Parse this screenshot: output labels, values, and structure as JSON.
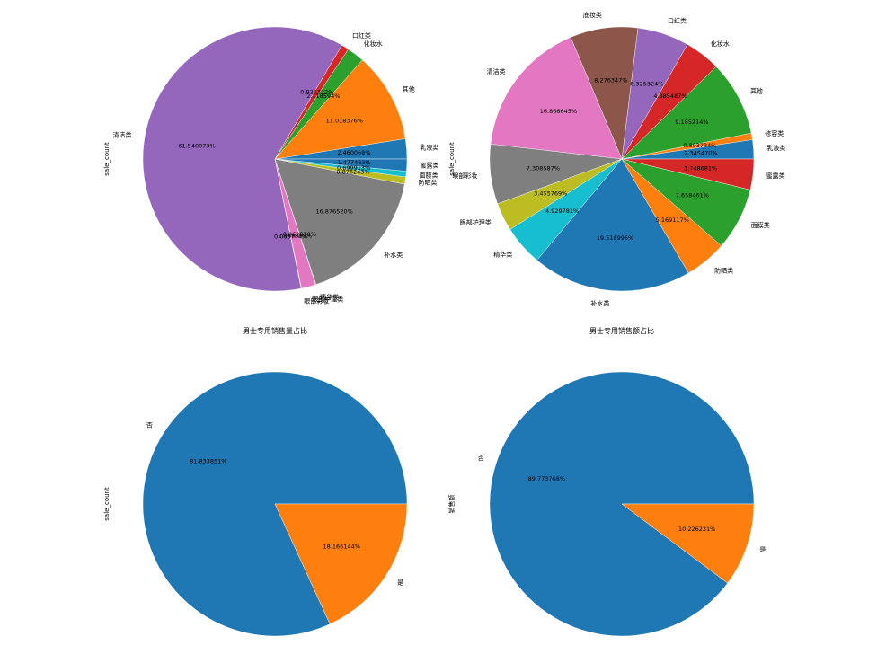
{
  "colors": {
    "palette": [
      "#1f77b4",
      "#ff7f0e",
      "#2ca02c",
      "#d62728",
      "#9467bd",
      "#8c564b",
      "#e377c2",
      "#7f7f7f",
      "#bcbd22",
      "#17becf"
    ],
    "wedge_edge": "#ffffff"
  },
  "chart_data": [
    {
      "type": "pie",
      "title": "",
      "ylabel": "sale_count",
      "start_angle_deg": 0,
      "counterclock": true,
      "slices": [
        {
          "label": "乳液类",
          "pct_text": "2.460068%",
          "value": 2.460068,
          "color": "#1f77b4"
        },
        {
          "label": "其他",
          "pct_text": "11.018376%",
          "value": 11.018376,
          "color": "#ff7f0e"
        },
        {
          "label": "化妆水",
          "pct_text": "2.118594%",
          "value": 2.118594,
          "color": "#2ca02c"
        },
        {
          "label": "口红类",
          "pct_text": "0.925322%",
          "value": 0.925322,
          "color": "#d62728"
        },
        {
          "label": "清洁类",
          "pct_text": "61.540073%",
          "value": 61.540073,
          "color": "#9467bd"
        },
        {
          "label": "眼部彩妆",
          "pct_text": "0.063744%",
          "value": 0.063744,
          "color": "#8c564b"
        },
        {
          "label": "眼部护理类",
          "pct_text": "1.748389%",
          "value": 1.748389,
          "color": "#e377c2"
        },
        {
          "label": "精华类",
          "pct_text": "0.062010%",
          "value": 0.06201,
          "color": "#8c564b"
        },
        {
          "label": "补水类",
          "pct_text": "16.876520%",
          "value": 16.87652,
          "color": "#7f7f7f"
        },
        {
          "label": "防晒类",
          "pct_text": "0.876243%",
          "value": 0.876243,
          "color": "#bcbd22"
        },
        {
          "label": "面膜类",
          "pct_text": "0.699913%",
          "value": 0.699913,
          "color": "#17becf"
        },
        {
          "label": "蜜露类",
          "pct_text": "1.477483%",
          "value": 1.477483,
          "color": "#1f77b4"
        }
      ]
    },
    {
      "type": "pie",
      "title": "",
      "ylabel": "sale_count",
      "start_angle_deg": 0,
      "counterclock": true,
      "slices": [
        {
          "label": "乳液类",
          "pct_text": "2.345470%",
          "value": 2.34547,
          "color": "#1f77b4"
        },
        {
          "label": "修容类",
          "pct_text": "0.803734%",
          "value": 0.803734,
          "color": "#ff7f0e"
        },
        {
          "label": "其他",
          "pct_text": "9.185214%",
          "value": 9.185214,
          "color": "#2ca02c"
        },
        {
          "label": "化妆水",
          "pct_text": "4.385487%",
          "value": 4.385487,
          "color": "#d62728"
        },
        {
          "label": "口红类",
          "pct_text": "6.325324%",
          "value": 6.325324,
          "color": "#9467bd"
        },
        {
          "label": "底妆类",
          "pct_text": "8.276347%",
          "value": 8.276347,
          "color": "#8c564b"
        },
        {
          "label": "清洁类",
          "pct_text": "16.866645%",
          "value": 16.866645,
          "color": "#e377c2"
        },
        {
          "label": "眼部彩妆",
          "pct_text": "7.308587%",
          "value": 7.308587,
          "color": "#7f7f7f"
        },
        {
          "label": "眼部护理类",
          "pct_text": "3.455769%",
          "value": 3.455769,
          "color": "#bcbd22"
        },
        {
          "label": "精华类",
          "pct_text": "4.929781%",
          "value": 4.929781,
          "color": "#17becf"
        },
        {
          "label": "补水类",
          "pct_text": "19.518996%",
          "value": 19.518996,
          "color": "#1f77b4"
        },
        {
          "label": "防晒类",
          "pct_text": "5.169117%",
          "value": 5.169117,
          "color": "#ff7f0e"
        },
        {
          "label": "面膜类",
          "pct_text": "7.658461%",
          "value": 7.658461,
          "color": "#2ca02c"
        },
        {
          "label": "蜜露类",
          "pct_text": "3.748681%",
          "value": 3.748681,
          "color": "#d62728"
        }
      ]
    },
    {
      "type": "pie",
      "title": "男士专用销售量占比",
      "ylabel": "sale_count",
      "start_angle_deg": 0,
      "counterclock": true,
      "slices": [
        {
          "label": "否",
          "pct_text": "81.833851%",
          "value": 81.833851,
          "color": "#1f77b4"
        },
        {
          "label": "是",
          "pct_text": "18.166144%",
          "value": 18.166144,
          "color": "#ff7f0e"
        }
      ]
    },
    {
      "type": "pie",
      "title": "男士专用销售额占比",
      "ylabel": "销售额",
      "start_angle_deg": 0,
      "counterclock": true,
      "slices": [
        {
          "label": "否",
          "pct_text": "89.773768%",
          "value": 89.773768,
          "color": "#1f77b4"
        },
        {
          "label": "是",
          "pct_text": "10.226231%",
          "value": 10.226231,
          "color": "#ff7f0e"
        }
      ]
    }
  ]
}
